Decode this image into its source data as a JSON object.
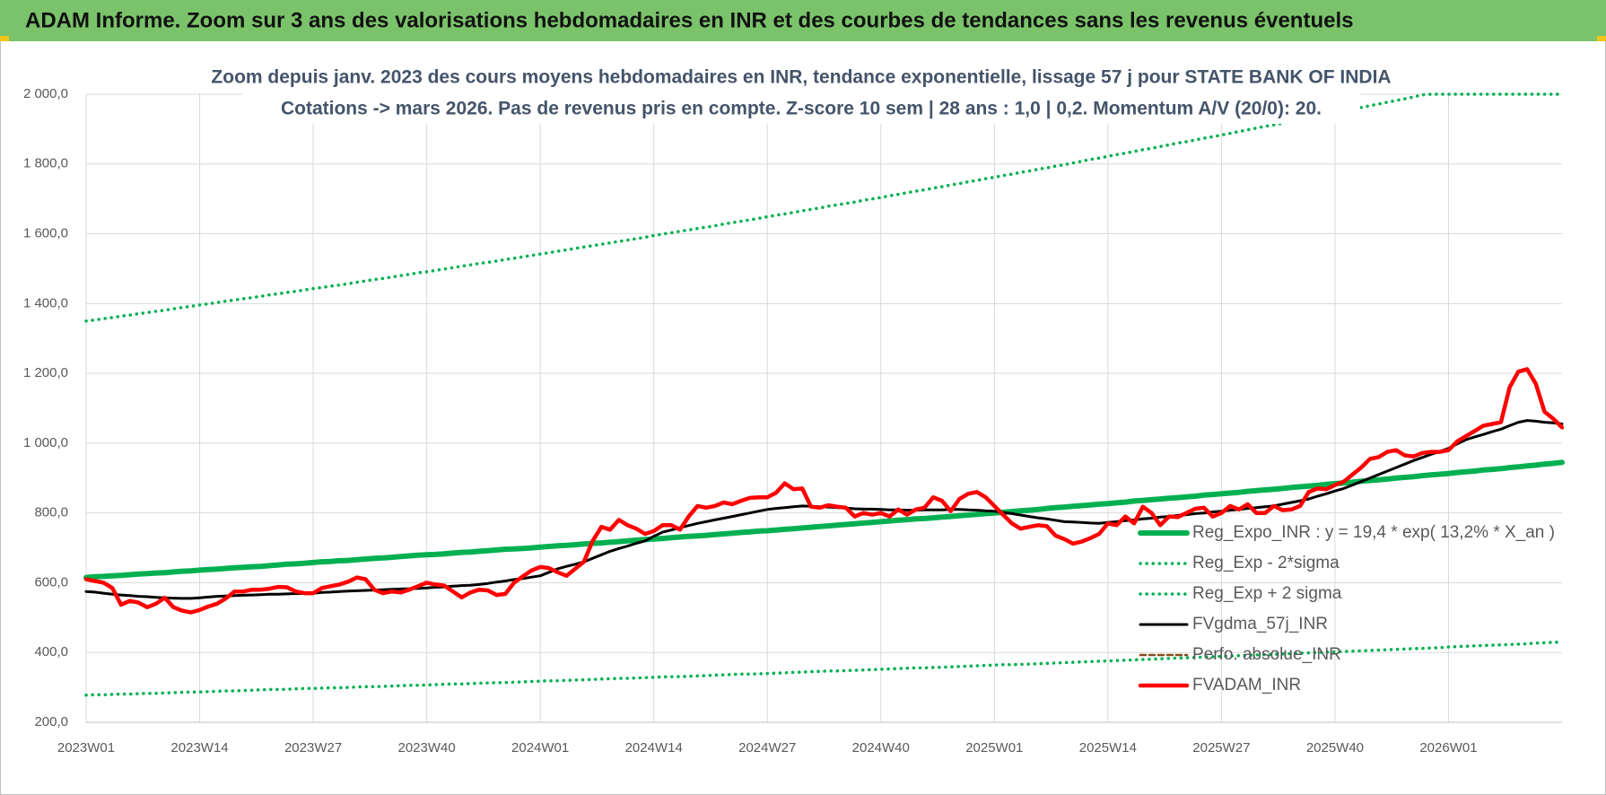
{
  "header": {
    "title": "ADAM Informe. Zoom sur 3 ans des valorisations hebdomadaires en INR et des courbes de tendances sans les revenus éventuels"
  },
  "chart_data": {
    "type": "line",
    "title": "Zoom depuis janv. 2023 des cours moyens hebdomadaires en INR, tendance exponentielle, lissage 57 j pour STATE BANK OF INDIA",
    "subtitle": "Cotations -> mars 2026. Pas de revenus pris en compte. Z-score 10 sem | 28 ans : 1,0 | 0,2. Momentum A/V (20/0): 20.",
    "categories": [
      "2023W01",
      null,
      null,
      null,
      null,
      null,
      null,
      null,
      null,
      null,
      null,
      null,
      null,
      "2023W14",
      null,
      null,
      null,
      null,
      null,
      null,
      null,
      null,
      null,
      null,
      null,
      null,
      "2023W27",
      null,
      null,
      null,
      null,
      null,
      null,
      null,
      null,
      null,
      null,
      null,
      null,
      "2023W40",
      null,
      null,
      null,
      null,
      null,
      null,
      null,
      null,
      null,
      null,
      null,
      null,
      "2024W01",
      null,
      null,
      null,
      null,
      null,
      null,
      null,
      null,
      null,
      null,
      null,
      null,
      "2024W14",
      null,
      null,
      null,
      null,
      null,
      null,
      null,
      null,
      null,
      null,
      null,
      null,
      "2024W27",
      null,
      null,
      null,
      null,
      null,
      null,
      null,
      null,
      null,
      null,
      null,
      null,
      "2024W40",
      null,
      null,
      null,
      null,
      null,
      null,
      null,
      null,
      null,
      null,
      null,
      null,
      "2025W01",
      null,
      null,
      null,
      null,
      null,
      null,
      null,
      null,
      null,
      null,
      null,
      null,
      "2025W14",
      null,
      null,
      null,
      null,
      null,
      null,
      null,
      null,
      null,
      null,
      null,
      null,
      "2025W27",
      null,
      null,
      null,
      null,
      null,
      null,
      null,
      null,
      null,
      null,
      null,
      null,
      "2025W40",
      null,
      null,
      null,
      null,
      null,
      null,
      null,
      null,
      null,
      null,
      null,
      null,
      "2026W01",
      null,
      null,
      null,
      null,
      null,
      null,
      null,
      null,
      null,
      null,
      null,
      null,
      null
    ],
    "ylim": [
      200,
      2000
    ],
    "yticks": [
      {
        "value": 200,
        "label": "200,0"
      },
      {
        "value": 400,
        "label": "400,0"
      },
      {
        "value": 600,
        "label": "600,0"
      },
      {
        "value": 800,
        "label": "800,0"
      },
      {
        "value": 1000,
        "label": "1 000,0"
      },
      {
        "value": 1200,
        "label": "1 200,0"
      },
      {
        "value": 1400,
        "label": "1 400,0"
      },
      {
        "value": 1600,
        "label": "1 600,0"
      },
      {
        "value": 1800,
        "label": "1 800,0"
      },
      {
        "value": 2000,
        "label": "2 000,0"
      }
    ],
    "grid": true,
    "legend": "lower right",
    "series": [
      {
        "name": "Reg_Expo_INR : y = 19,4 * exp( 13,2% *  X_an )",
        "color": "#00b050",
        "style": "solid",
        "values": [
          615,
          617,
          618,
          620,
          621,
          623,
          625,
          626,
          628,
          629,
          631,
          633,
          634,
          636,
          638,
          639,
          641,
          643,
          644,
          646,
          647,
          649,
          651,
          653,
          654,
          656,
          658,
          660,
          661,
          663,
          664,
          666,
          668,
          670,
          671,
          673,
          675,
          677,
          679,
          680,
          681,
          683,
          685,
          687,
          688,
          690,
          692,
          694,
          696,
          697,
          698,
          700,
          702,
          704,
          706,
          707,
          709,
          711,
          713,
          714,
          716,
          718,
          720,
          722,
          724,
          725,
          727,
          729,
          731,
          733,
          734,
          736,
          738,
          740,
          742,
          744,
          746,
          748,
          749,
          751,
          753,
          755,
          757,
          759,
          761,
          763,
          765,
          767,
          769,
          771,
          773,
          775,
          777,
          779,
          781,
          783,
          784,
          786,
          788,
          790,
          792,
          794,
          796,
          798,
          800,
          802,
          804,
          806,
          808,
          810,
          813,
          815,
          817,
          819,
          821,
          823,
          825,
          827,
          829,
          831,
          834,
          836,
          838,
          840,
          842,
          844,
          846,
          848,
          851,
          853,
          855,
          857,
          859,
          862,
          864,
          866,
          868,
          870,
          873,
          875,
          877,
          879,
          882,
          884,
          886,
          888,
          891,
          893,
          895,
          897,
          900,
          902,
          904,
          907,
          909,
          911,
          913,
          916,
          918,
          920,
          923,
          925,
          927,
          930,
          932,
          935,
          937,
          940,
          942,
          945
        ]
      },
      {
        "name": "Reg_Exp - 2*sigma",
        "color": "#00b050",
        "style": "dotted",
        "values": [
          278,
          279,
          279,
          280,
          281,
          281,
          282,
          283,
          283,
          284,
          285,
          286,
          287,
          287,
          288,
          289,
          290,
          290,
          291,
          292,
          293,
          294,
          294,
          295,
          296,
          297,
          297,
          298,
          299,
          299,
          300,
          301,
          302,
          302,
          303,
          304,
          305,
          306,
          306,
          307,
          308,
          309,
          310,
          310,
          311,
          312,
          313,
          314,
          314,
          315,
          316,
          317,
          318,
          319,
          319,
          320,
          321,
          322,
          323,
          324,
          325,
          326,
          326,
          327,
          328,
          329,
          330,
          331,
          331,
          332,
          333,
          334,
          335,
          336,
          337,
          338,
          338,
          339,
          340,
          341,
          342,
          343,
          344,
          345,
          346,
          347,
          347,
          348,
          349,
          350,
          351,
          352,
          353,
          354,
          355,
          356,
          356,
          357,
          358,
          359,
          360,
          361,
          362,
          363,
          364,
          365,
          365,
          366,
          367,
          368,
          369,
          370,
          371,
          372,
          373,
          374,
          375,
          376,
          377,
          378,
          379,
          380,
          381,
          382,
          383,
          384,
          385,
          386,
          387,
          388,
          389,
          390,
          391,
          392,
          393,
          394,
          395,
          396,
          397,
          398,
          399,
          400,
          401,
          402,
          403,
          404,
          405,
          406,
          407,
          408,
          409,
          410,
          411,
          412,
          413,
          414,
          416,
          417,
          418,
          419,
          420,
          421,
          422,
          423,
          424,
          425,
          427,
          428,
          429,
          430
        ]
      },
      {
        "name": "Reg_Exp + 2 sigma",
        "color": "#00b050",
        "style": "dotted",
        "values": [
          1350,
          1353,
          1357,
          1360,
          1364,
          1367,
          1371,
          1374,
          1378,
          1381,
          1385,
          1389,
          1392,
          1396,
          1399,
          1403,
          1407,
          1410,
          1414,
          1417,
          1421,
          1425,
          1428,
          1432,
          1435,
          1439,
          1443,
          1446,
          1450,
          1453,
          1457,
          1461,
          1465,
          1469,
          1472,
          1476,
          1480,
          1484,
          1488,
          1491,
          1495,
          1499,
          1503,
          1507,
          1511,
          1515,
          1518,
          1522,
          1526,
          1530,
          1534,
          1538,
          1542,
          1546,
          1550,
          1554,
          1558,
          1562,
          1566,
          1570,
          1574,
          1578,
          1582,
          1586,
          1590,
          1595,
          1599,
          1603,
          1607,
          1611,
          1615,
          1619,
          1623,
          1628,
          1632,
          1636,
          1640,
          1644,
          1649,
          1653,
          1657,
          1661,
          1666,
          1670,
          1674,
          1679,
          1683,
          1687,
          1691,
          1696,
          1700,
          1704,
          1709,
          1713,
          1718,
          1722,
          1726,
          1731,
          1735,
          1740,
          1744,
          1749,
          1753,
          1758,
          1762,
          1767,
          1771,
          1776,
          1780,
          1785,
          1789,
          1794,
          1798,
          1803,
          1808,
          1813,
          1817,
          1822,
          1827,
          1831,
          1836,
          1841,
          1845,
          1850,
          1855,
          1860,
          1864,
          1869,
          1874,
          1878,
          1883,
          1888,
          1893,
          1898,
          1903,
          1908,
          1912,
          1917,
          1922,
          1927,
          1932,
          1937,
          1942,
          1947,
          1952,
          1957,
          1962,
          1967,
          1972,
          1977,
          1982,
          1987,
          1992,
          1998,
          2003,
          2008,
          2013,
          2018,
          2024,
          2029,
          2034,
          2039,
          2044,
          2049,
          2055,
          2060,
          2065,
          2070,
          2076,
          2081
        ]
      },
      {
        "name": "FVgdma_57j_INR",
        "color": "#000000",
        "style": "solid",
        "values": [
          575,
          573,
          570,
          567,
          565,
          563,
          561,
          560,
          558,
          557,
          556,
          555,
          555,
          557,
          559,
          561,
          562,
          563,
          564,
          565,
          566,
          567,
          567,
          568,
          569,
          569,
          570,
          572,
          573,
          575,
          576,
          577,
          578,
          579,
          580,
          581,
          582,
          583,
          584,
          585,
          587,
          588,
          590,
          592,
          593,
          595,
          598,
          602,
          605,
          609,
          612,
          616,
          620,
          630,
          640,
          647,
          653,
          660,
          670,
          680,
          690,
          698,
          705,
          713,
          720,
          733,
          745,
          751,
          758,
          764,
          770,
          775,
          780,
          785,
          790,
          795,
          800,
          805,
          810,
          813,
          815,
          818,
          820,
          819,
          818,
          817,
          815,
          814,
          812,
          811,
          811,
          810,
          809,
          809,
          808,
          808,
          809,
          809,
          809,
          810,
          810,
          809,
          808,
          806,
          805,
          801,
          798,
          794,
          790,
          786,
          783,
          779,
          775,
          774,
          773,
          771,
          770,
          773,
          775,
          778,
          780,
          783,
          785,
          788,
          790,
          793,
          795,
          798,
          800,
          803,
          805,
          808,
          810,
          813,
          815,
          818,
          820,
          825,
          830,
          835,
          840,
          848,
          855,
          863,
          870,
          880,
          890,
          900,
          910,
          920,
          930,
          940,
          950,
          959,
          968,
          976,
          985,
          998,
          1010,
          1018,
          1025,
          1033,
          1040,
          1050,
          1060,
          1065,
          1063,
          1060,
          1058,
          1055
        ]
      },
      {
        "name": "Perfo. absolue_INR",
        "color": "#8b4a1c",
        "style": "dashed",
        "values": [
          null,
          null,
          null,
          null,
          null,
          null,
          null,
          null,
          null,
          null,
          null,
          null,
          null,
          null,
          null,
          null,
          null,
          null,
          null,
          null,
          null,
          null,
          null,
          null,
          null,
          null,
          null,
          null,
          null,
          null,
          null,
          null,
          null,
          null,
          null,
          null,
          null,
          null,
          null,
          null,
          null,
          null,
          null,
          null,
          null,
          null,
          null,
          null,
          null,
          null,
          null,
          null,
          null,
          null,
          null,
          null,
          null,
          null,
          null,
          null,
          null,
          null,
          null,
          null,
          null,
          null,
          null,
          null,
          null,
          null,
          null,
          null,
          null,
          null,
          null,
          null,
          null,
          null,
          null,
          null,
          null,
          null,
          null,
          null,
          null,
          null,
          null,
          null,
          null,
          null,
          null,
          null,
          null,
          null,
          null,
          null,
          null,
          null,
          null,
          null,
          null,
          null,
          null,
          null,
          null,
          null,
          null,
          null,
          null,
          null,
          null,
          null,
          null,
          null,
          null,
          null,
          null,
          null,
          null,
          null,
          null,
          null,
          null,
          null,
          null,
          null,
          null,
          null,
          null,
          null,
          null,
          null,
          null,
          null,
          null,
          null,
          null,
          null,
          null,
          null,
          null,
          null,
          null,
          null,
          null,
          null,
          null,
          null,
          null,
          null,
          null,
          null,
          null,
          null,
          null,
          null,
          null,
          null,
          null,
          null,
          null,
          null,
          null,
          null,
          null,
          null,
          null,
          null,
          null,
          null
        ]
      },
      {
        "name": "FVADAM_INR",
        "color": "#ff0000",
        "style": "solid",
        "values": [
          610,
          605,
          600,
          585,
          537,
          548,
          543,
          530,
          540,
          557,
          530,
          520,
          515,
          522,
          532,
          540,
          555,
          575,
          575,
          580,
          580,
          583,
          588,
          587,
          575,
          570,
          570,
          585,
          590,
          595,
          603,
          615,
          610,
          580,
          570,
          575,
          572,
          580,
          590,
          600,
          595,
          592,
          575,
          558,
          572,
          580,
          578,
          565,
          568,
          600,
          618,
          635,
          645,
          642,
          630,
          620,
          640,
          660,
          720,
          760,
          752,
          780,
          765,
          755,
          740,
          748,
          765,
          765,
          752,
          790,
          820,
          815,
          820,
          830,
          825,
          835,
          843,
          845,
          845,
          858,
          885,
          868,
          870,
          818,
          815,
          822,
          818,
          815,
          790,
          800,
          795,
          800,
          790,
          810,
          795,
          810,
          815,
          845,
          835,
          805,
          840,
          855,
          860,
          845,
          820,
          795,
          770,
          755,
          760,
          765,
          762,
          735,
          725,
          712,
          718,
          728,
          740,
          770,
          765,
          790,
          770,
          818,
          800,
          765,
          790,
          788,
          800,
          812,
          815,
          790,
          800,
          820,
          810,
          825,
          800,
          800,
          820,
          808,
          810,
          820,
          860,
          870,
          868,
          880,
          890,
          910,
          930,
          955,
          960,
          975,
          980,
          965,
          962,
          972,
          975,
          975,
          980,
          1005,
          1020,
          1035,
          1050,
          1055,
          1060,
          1160,
          1205,
          1212,
          1170,
          1090,
          1070,
          1045
        ]
      }
    ]
  }
}
